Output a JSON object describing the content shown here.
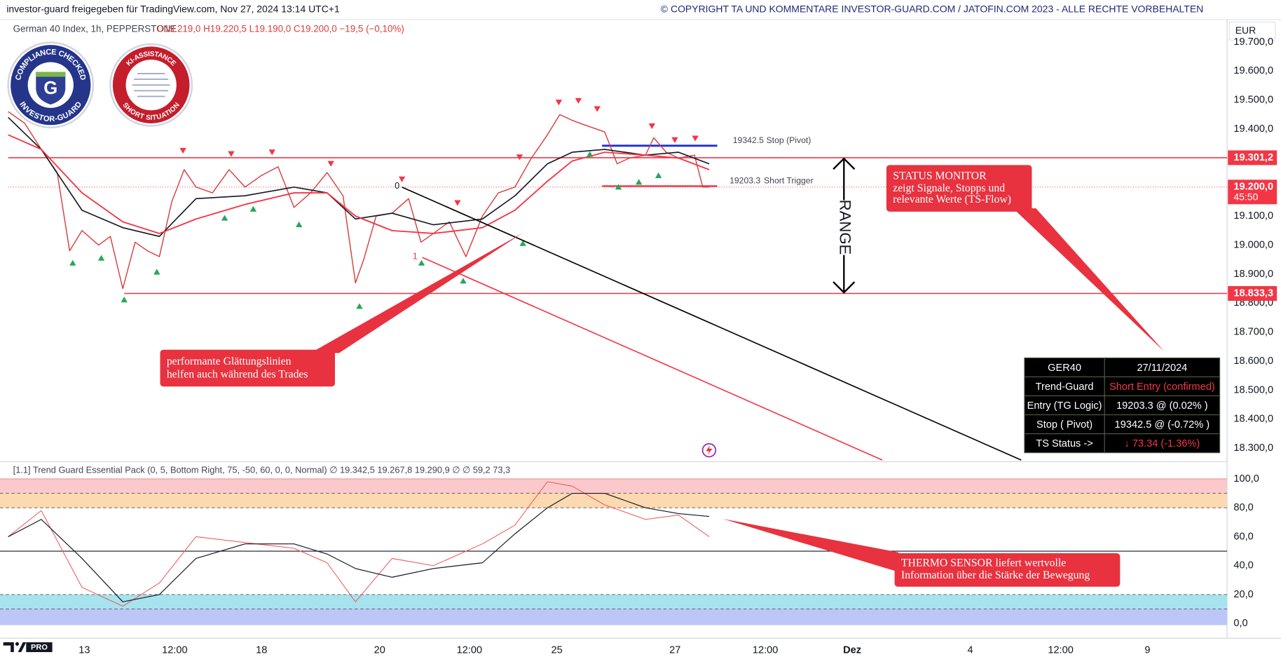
{
  "header": {
    "left": "investor-guard freigegeben für TradingView.com, Nov 27, 2024 13:14 UTC+1",
    "right": "© COPYRIGHT TA UND KOMMENTARE INVESTOR-GUARD.COM / JATOFIN.COM 2023 - ALLE RECHTE VORBEHALTEN"
  },
  "legend": {
    "symbol": "German 40 Index, 1h, PEPPERSTONE",
    "ohlc": "O19.219,0 H19.220,5 L19.190,0 C19.200,0 −19,5 (−0,10%)"
  },
  "currency": "EUR",
  "badges": [
    "COMPLIANCE CHECKED",
    "INVESTOR-GUARD",
    "KI-ASSISTANCE",
    "SHORT SITUATION"
  ],
  "logo": "PRO",
  "chart_data": [
    {
      "type": "line",
      "xlim": [
        -1.29,
        19.32
      ],
      "ylim": [
        18259,
        19766
      ],
      "yticks": [
        {
          "value": 18300,
          "label": "18.300,0"
        },
        {
          "value": 18400,
          "label": "18.400,0"
        },
        {
          "value": 18500,
          "label": "18.500,0"
        },
        {
          "value": 18600,
          "label": "18.600,0"
        },
        {
          "value": 18700,
          "label": "18.700,0"
        },
        {
          "value": 18800,
          "label": "18.800,0"
        },
        {
          "value": 18900,
          "label": "18.900,0"
        },
        {
          "value": 19000,
          "label": "19.000,0"
        },
        {
          "value": 19100,
          "label": "19.100,0"
        },
        {
          "value": 19400,
          "label": "19.400,0"
        },
        {
          "value": 19500,
          "label": "19.500,0"
        },
        {
          "value": 19600,
          "label": "19.600,0"
        },
        {
          "value": 19700,
          "label": "19.700,0"
        }
      ],
      "grid": false,
      "series": [
        {
          "color": "#d93b3b",
          "x": [
            -1.29,
            -1.01,
            -0.73,
            -0.46,
            -0.25,
            -0.04,
            0.24,
            0.44,
            0.65,
            0.86,
            1.07,
            1.27,
            1.48,
            1.69,
            1.89,
            2.17,
            2.45,
            2.72,
            3.0,
            3.28,
            3.55,
            3.83,
            4.11,
            4.38,
            4.59,
            4.73,
            4.94,
            5.21,
            5.49,
            5.7,
            5.91,
            6.18,
            6.46,
            6.74,
            7.01,
            7.29,
            7.57,
            7.84,
            8.05,
            8.26,
            8.53,
            8.81,
            9.02,
            9.23,
            9.5,
            9.64,
            9.85,
            10.06,
            10.33,
            10.47,
            10.58
          ],
          "values": [
            19460,
            19420,
            19330,
            19250,
            18980,
            19050,
            19000,
            19030,
            18850,
            19010,
            18980,
            18960,
            19150,
            19260,
            19200,
            19180,
            19260,
            19200,
            19240,
            19270,
            19130,
            19180,
            19250,
            19170,
            18870,
            18950,
            19100,
            19110,
            19160,
            19010,
            19040,
            19080,
            18960,
            19100,
            19180,
            19200,
            19300,
            19380,
            19450,
            19430,
            19410,
            19390,
            19280,
            19300,
            19310,
            19370,
            19320,
            19300,
            19310,
            19200,
            19200
          ]
        },
        {
          "color": "#131722",
          "x": [
            -1.29,
            -0.73,
            -0.04,
            0.65,
            1.27,
            1.89,
            2.72,
            3.55,
            4.11,
            4.59,
            5.21,
            5.91,
            6.74,
            7.29,
            7.84,
            8.26,
            8.81,
            9.5,
            10.06,
            10.58
          ],
          "values": [
            19440,
            19330,
            19120,
            19060,
            19030,
            19160,
            19170,
            19200,
            19180,
            19090,
            19110,
            19070,
            19090,
            19170,
            19280,
            19320,
            19330,
            19310,
            19320,
            19280
          ]
        },
        {
          "color": "#f23645",
          "x": [
            -1.29,
            -0.73,
            -0.04,
            0.65,
            1.27,
            1.89,
            2.72,
            3.55,
            4.11,
            4.59,
            5.21,
            5.91,
            6.74,
            7.29,
            7.84,
            8.26,
            8.81,
            9.5,
            10.06,
            10.58
          ],
          "values": [
            19380,
            19330,
            19180,
            19080,
            19040,
            19090,
            19140,
            19180,
            19180,
            19100,
            19050,
            19040,
            19060,
            19120,
            19220,
            19290,
            19320,
            19310,
            19300,
            19260
          ]
        }
      ],
      "levels": [
        {
          "value": 19301.2,
          "label": "19.301,2"
        },
        {
          "value": 18833.3,
          "label": "18.833,3"
        }
      ],
      "last_price": {
        "value": 19200,
        "label": "19.200,0",
        "countdown": "45:50"
      },
      "stop": {
        "value": 19342.5,
        "text": "Stop (Pivot)"
      },
      "trigger": {
        "value": 19203.3,
        "text": "Short Trigger"
      },
      "marks": [
        "0",
        "1"
      ],
      "range": "RANGE"
    },
    {
      "type": "line",
      "title": "[1.1] Trend Guard Essential Pack (0, 5, Bottom Right, 75, -50, 60, 0, 0, Normal)  ∅ 19.342,5  19.267,8  19.290,9  ∅  ∅  59,2  73,3",
      "xlim": [
        -1.29,
        19.32
      ],
      "xticks": [
        {
          "value": 0,
          "label": "13"
        },
        {
          "value": 1.53,
          "label": "12:00"
        },
        {
          "value": 3,
          "label": "18"
        },
        {
          "value": 5,
          "label": "20"
        },
        {
          "value": 6.52,
          "label": "12:00"
        },
        {
          "value": 8,
          "label": "25"
        },
        {
          "value": 10,
          "label": "27"
        },
        {
          "value": 11.53,
          "label": "12:00"
        },
        {
          "value": 13,
          "label": "Dez"
        },
        {
          "value": 15,
          "label": "4"
        },
        {
          "value": 16.53,
          "label": "12:00"
        },
        {
          "value": 18,
          "label": "9"
        }
      ],
      "ylim": [
        0,
        100
      ],
      "yticks": [
        {
          "value": 0,
          "label": "0,0"
        },
        {
          "value": 20,
          "label": "20,0"
        },
        {
          "value": 40,
          "label": "40,0"
        },
        {
          "value": 60,
          "label": "60,0"
        },
        {
          "value": 80,
          "label": "80,0"
        },
        {
          "value": 100,
          "label": "100,0"
        }
      ],
      "levels": [
        90,
        80,
        50,
        20,
        10
      ],
      "series": [
        {
          "color": "#f05a5a",
          "x": [
            -1.29,
            -0.73,
            -0.04,
            0.65,
            1.27,
            1.89,
            2.72,
            3.55,
            4.11,
            4.59,
            5.21,
            5.91,
            6.74,
            7.29,
            7.84,
            8.26,
            8.81,
            9.5,
            10.06,
            10.58
          ],
          "values": [
            60,
            78,
            25,
            12,
            28,
            60,
            56,
            52,
            42,
            15,
            45,
            40,
            55,
            68,
            98,
            95,
            82,
            72,
            75,
            60
          ]
        },
        {
          "color": "#131722",
          "x": [
            -1.29,
            -0.73,
            -0.04,
            0.65,
            1.27,
            1.89,
            2.72,
            3.55,
            4.11,
            4.59,
            5.21,
            5.91,
            6.74,
            7.29,
            7.84,
            8.26,
            8.81,
            9.5,
            10.06,
            10.58
          ],
          "values": [
            60,
            72,
            45,
            15,
            20,
            45,
            55,
            55,
            48,
            38,
            32,
            38,
            42,
            62,
            80,
            90,
            90,
            80,
            76,
            74
          ]
        }
      ]
    }
  ],
  "annotations": {
    "status": [
      "STATUS MONITOR",
      "zeigt Signale, Stopps und",
      "relevante Werte (TS-Flow)"
    ],
    "smoothing": [
      "performante Glättungslinien",
      "helfen auch während des Trades"
    ],
    "thermo": [
      "THERMO SENSOR liefert wertvolle",
      "Information über die Stärke der Bewegung"
    ]
  },
  "status_table": {
    "rows": [
      [
        "GER40",
        "27/11/2024"
      ],
      [
        "Trend-Guard",
        "Short Entry (confirmed)"
      ],
      [
        "Entry (TG Logic)",
        "19203.3 @ (0.02% )"
      ],
      [
        "Stop ( Pivot)",
        "19342.5 @ (-0.72% )"
      ],
      [
        "TS Status ->",
        "↓ 73.34 (-1.36%)"
      ]
    ]
  }
}
